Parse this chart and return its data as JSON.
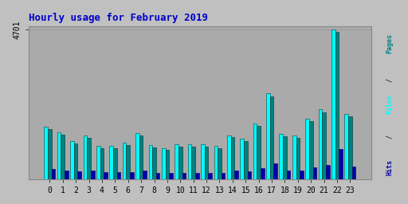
{
  "title": "Hourly usage for February 2019",
  "hours": [
    0,
    1,
    2,
    3,
    4,
    5,
    6,
    7,
    8,
    9,
    10,
    11,
    12,
    13,
    14,
    15,
    16,
    17,
    18,
    19,
    20,
    21,
    22,
    23
  ],
  "files": [
    1650,
    1480,
    1200,
    1380,
    1050,
    1050,
    1150,
    1450,
    1080,
    980,
    1100,
    1100,
    1100,
    1050,
    1380,
    1280,
    1750,
    2700,
    1420,
    1370,
    1900,
    2200,
    4701,
    2050
  ],
  "pages": [
    1580,
    1410,
    1140,
    1310,
    990,
    990,
    1090,
    1380,
    1010,
    920,
    1040,
    1040,
    1040,
    990,
    1320,
    1210,
    1680,
    2600,
    1360,
    1310,
    1820,
    2100,
    4620,
    1970
  ],
  "hits": [
    320,
    290,
    250,
    280,
    230,
    230,
    240,
    270,
    210,
    200,
    215,
    215,
    215,
    210,
    270,
    250,
    360,
    510,
    280,
    270,
    390,
    450,
    960,
    410
  ],
  "bar_color_pages": "#008080",
  "bar_color_files": "#00FFFF",
  "bar_color_hits": "#0000AA",
  "bg_color": "#C0C0C0",
  "plot_bg_color": "#AAAAAA",
  "title_color": "#0000CC",
  "border_color": "#888888",
  "ytick_label": "4701",
  "grid_color": "#999999",
  "right_label_pages": "Pages",
  "right_label_files": "Files",
  "right_label_hits": "Hits",
  "right_label_sep": " / "
}
